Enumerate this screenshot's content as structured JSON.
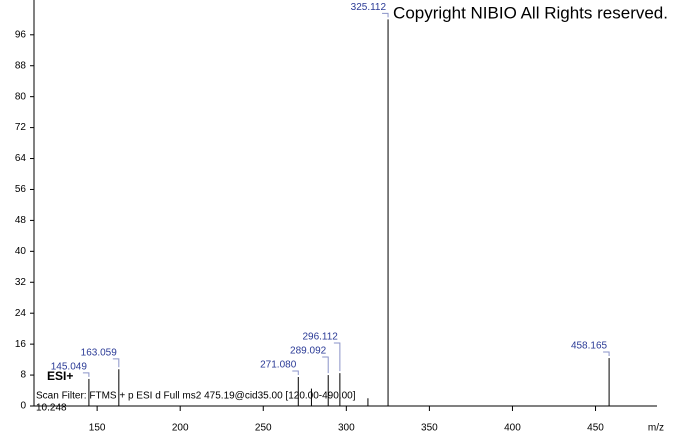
{
  "chart_data": {
    "type": "stem",
    "title": "Copyright NIBIO All Rights reserved.",
    "polarity": "ESI+",
    "scan_filter": "Scan Filter: FTMS + p ESI d Full ms2 475.19@cid35.00 [120.00-490.00]",
    "retention_time": "10.248",
    "x_label": "m/z",
    "x": [
      145.049,
      163.059,
      271.08,
      279,
      289.092,
      296.112,
      313,
      325.112,
      458.165
    ],
    "point_labels": [
      "145.049",
      "163.059",
      "271.080",
      null,
      "289.092",
      "296.112",
      null,
      "325.112",
      "458.165"
    ],
    "values": [
      7,
      9.5,
      7.5,
      4.5,
      8,
      8.5,
      2,
      100,
      12.4
    ],
    "color": "#000000",
    "xlim": [
      112,
      487
    ],
    "xticks": [
      150,
      200,
      250,
      300,
      350,
      400,
      450
    ],
    "ylim": [
      0,
      105
    ],
    "yticks": [
      0,
      8,
      16,
      24,
      32,
      40,
      48,
      56,
      64,
      72,
      80,
      88,
      96
    ]
  }
}
